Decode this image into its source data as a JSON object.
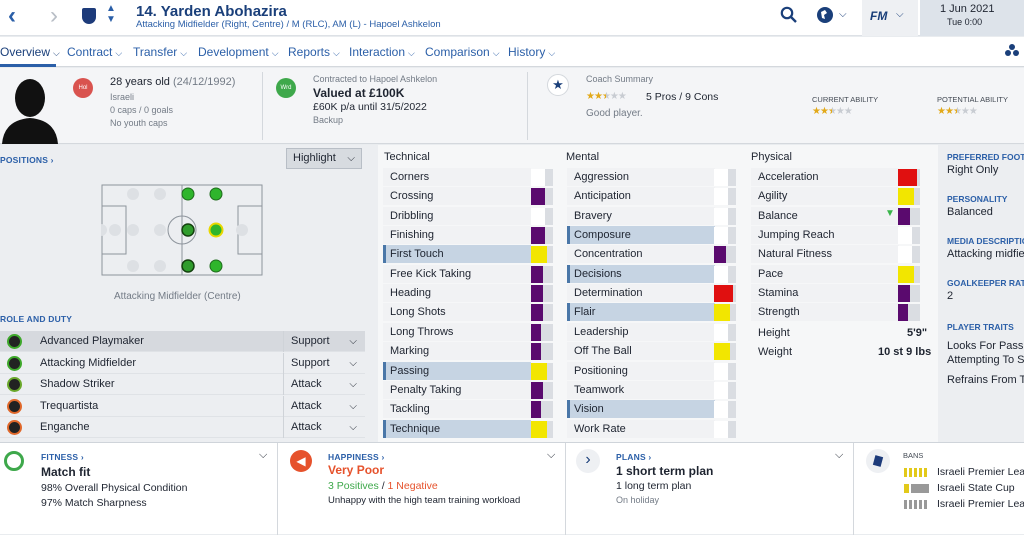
{
  "header": {
    "player_title": "14. Yarden Abohazira",
    "subtitle": "Attacking Midfielder (Right, Centre) / M (RLC), AM (L) - Hapoel Ashkelon",
    "fm_label": "FM",
    "date": "1 Jun 2021",
    "time": "Tue 0:00"
  },
  "tabs": [
    "Overview",
    "Contract",
    "Transfer",
    "Development",
    "Reports",
    "Interaction",
    "Comparison",
    "History"
  ],
  "info": {
    "nation_badge": "Hol",
    "age": "28 years old",
    "dob": "(24/12/1992)",
    "nationality": "Israeli",
    "caps": "0 caps / 0 goals",
    "youth": "No youth caps",
    "wrd_badge": "Wrd",
    "contract_label": "Contracted to Hapoel Ashkelon",
    "value": "Valued at £100K",
    "wage": "£60K p/a until 31/5/2022",
    "squad_status": "Backup",
    "coach_title": "Coach Summary",
    "coach_pros": "5 Pros / 9 Cons",
    "coach_text": "Good player.",
    "current_ability_label": "CURRENT ABILITY",
    "potential_ability_label": "POTENTIAL ABILITY",
    "coach_stars": 2.5,
    "current_ability_stars": 2.5,
    "potential_ability_stars": 2.5
  },
  "positions": {
    "header": "POSITIONS",
    "highlight": "Highlight",
    "position_label": "Attacking Midfielder (Centre)"
  },
  "roles": {
    "header": "ROLE AND DUTY",
    "items": [
      {
        "name": "Advanced Playmaker",
        "duty": "Support",
        "color": "#3ea82b"
      },
      {
        "name": "Attacking Midfielder",
        "duty": "Support",
        "color": "#3ea82b"
      },
      {
        "name": "Shadow Striker",
        "duty": "Attack",
        "color": "#6aa82b"
      },
      {
        "name": "Trequartista",
        "duty": "Attack",
        "color": "#e0682b"
      },
      {
        "name": "Enganche",
        "duty": "Attack",
        "color": "#e0682b"
      }
    ]
  },
  "attributes": {
    "technical_title": "Technical",
    "mental_title": "Mental",
    "physical_title": "Physical",
    "technical": [
      {
        "name": "Corners",
        "color": "#ffffff",
        "fill": 0.5,
        "hl": false
      },
      {
        "name": "Crossing",
        "color": "#5a0a6e",
        "fill": 0.5,
        "hl": false
      },
      {
        "name": "Dribbling",
        "color": "#ffffff",
        "fill": 0.5,
        "hl": false
      },
      {
        "name": "Finishing",
        "color": "#5a0a6e",
        "fill": 0.5,
        "hl": false
      },
      {
        "name": "First Touch",
        "color": "#f2e600",
        "fill": 0.6,
        "hl": true
      },
      {
        "name": "Free Kick Taking",
        "color": "#5a0a6e",
        "fill": 0.4,
        "hl": false
      },
      {
        "name": "Heading",
        "color": "#5a0a6e",
        "fill": 0.4,
        "hl": false
      },
      {
        "name": "Long Shots",
        "color": "#5a0a6e",
        "fill": 0.4,
        "hl": false
      },
      {
        "name": "Long Throws",
        "color": "#5a0a6e",
        "fill": 0.3,
        "hl": false
      },
      {
        "name": "Marking",
        "color": "#5a0a6e",
        "fill": 0.3,
        "hl": false
      },
      {
        "name": "Passing",
        "color": "#f2e600",
        "fill": 0.6,
        "hl": true
      },
      {
        "name": "Penalty Taking",
        "color": "#5a0a6e",
        "fill": 0.4,
        "hl": false
      },
      {
        "name": "Tackling",
        "color": "#5a0a6e",
        "fill": 0.3,
        "hl": false
      },
      {
        "name": "Technique",
        "color": "#f2e600",
        "fill": 0.6,
        "hl": true
      }
    ],
    "mental": [
      {
        "name": "Aggression",
        "color": "#ffffff",
        "fill": 0.5,
        "hl": false
      },
      {
        "name": "Anticipation",
        "color": "#ffffff",
        "fill": 0.5,
        "hl": false
      },
      {
        "name": "Bravery",
        "color": "#ffffff",
        "fill": 0.5,
        "hl": false
      },
      {
        "name": "Composure",
        "color": "#ffffff",
        "fill": 0.5,
        "hl": true
      },
      {
        "name": "Concentration",
        "color": "#5a0a6e",
        "fill": 0.4,
        "hl": false
      },
      {
        "name": "Decisions",
        "color": "#ffffff",
        "fill": 0.5,
        "hl": true
      },
      {
        "name": "Determination",
        "color": "#e01010",
        "fill": 0.75,
        "hl": false
      },
      {
        "name": "Flair",
        "color": "#f2e600",
        "fill": 0.6,
        "hl": true
      },
      {
        "name": "Leadership",
        "color": "#ffffff",
        "fill": 0.5,
        "hl": false
      },
      {
        "name": "Off The Ball",
        "color": "#f2e600",
        "fill": 0.6,
        "hl": false
      },
      {
        "name": "Positioning",
        "color": "#ffffff",
        "fill": 0.5,
        "hl": false
      },
      {
        "name": "Teamwork",
        "color": "#ffffff",
        "fill": 0.5,
        "hl": false
      },
      {
        "name": "Vision",
        "color": "#ffffff",
        "fill": 0.5,
        "hl": true
      },
      {
        "name": "Work Rate",
        "color": "#ffffff",
        "fill": 0.5,
        "hl": false
      }
    ],
    "physical": [
      {
        "name": "Acceleration",
        "color": "#e01010",
        "fill": 0.75,
        "hl": false
      },
      {
        "name": "Agility",
        "color": "#f2e600",
        "fill": 0.6,
        "hl": false
      },
      {
        "name": "Balance",
        "color": "#5a0a6e",
        "fill": 0.4,
        "hl": false
      },
      {
        "name": "Jumping Reach",
        "color": "#ffffff",
        "fill": 0.5,
        "hl": false
      },
      {
        "name": "Natural Fitness",
        "color": "#ffffff",
        "fill": 0.5,
        "hl": false
      },
      {
        "name": "Pace",
        "color": "#f2e600",
        "fill": 0.6,
        "hl": false
      },
      {
        "name": "Stamina",
        "color": "#5a0a6e",
        "fill": 0.4,
        "hl": false
      },
      {
        "name": "Strength",
        "color": "#5a0a6e",
        "fill": 0.3,
        "hl": false
      }
    ],
    "height_label": "Height",
    "height_value": "5'9\"",
    "weight_label": "Weight",
    "weight_value": "10 st 9 lbs"
  },
  "sidebar_right": {
    "foot_label": "PREFERRED FOOT",
    "foot_value": "Right Only",
    "personality_label": "PERSONALITY",
    "personality_value": "Balanced",
    "media_label": "MEDIA DESCRIPTION",
    "media_value": "Attacking midfielder",
    "gk_label": "GOALKEEPER RATING",
    "gk_value": "2",
    "traits_label": "PLAYER TRAITS",
    "traits": [
      "Looks For Pass Rather",
      "Attempting To Score",
      "Refrains From Taking"
    ]
  },
  "bottom": {
    "fitness_label": "FITNESS",
    "fitness_title": "Match fit",
    "fitness_line1": "98% Overall Physical Condition",
    "fitness_line2": "97% Match Sharpness",
    "happiness_label": "HAPPINESS",
    "happiness_title": "Very Poor",
    "positives": "3 Positives",
    "slash": " / ",
    "negatives": "1 Negative",
    "happiness_note": "Unhappy with the high team training workload",
    "plans_label": "PLANS",
    "plans_title": "1 short term plan",
    "plans_line": "1 long term plan",
    "plans_status": "On holiday",
    "bans_label": "BANS",
    "bans": [
      "Israeli Premier League",
      "Israeli State Cup",
      "Israeli Premier League"
    ]
  }
}
